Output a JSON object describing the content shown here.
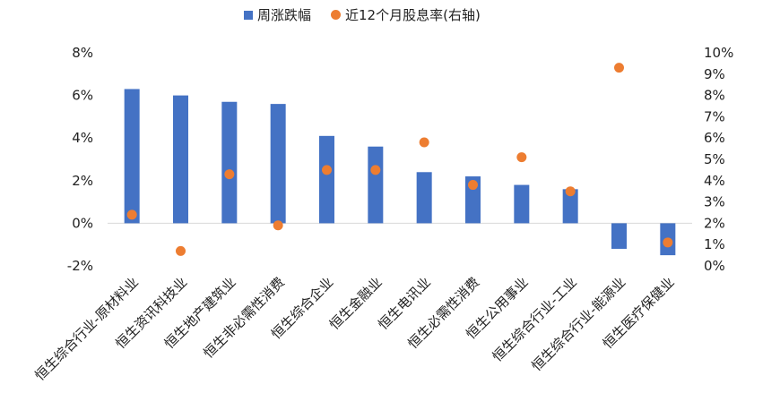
{
  "chart_data": {
    "type": "bar",
    "categories": [
      "恒生综合行业-原材料业",
      "恒生资讯科技业",
      "恒生地产建筑业",
      "恒生非必需性消费",
      "恒生综合企业",
      "恒生金融业",
      "恒生电讯业",
      "恒生必需性消费",
      "恒生公用事业",
      "恒生综合行业-工业",
      "恒生综合行业-能源业",
      "恒生医疗保健业"
    ],
    "series": [
      {
        "name": "周涨跌幅",
        "type": "bar",
        "axis": "left",
        "color": "#4472C4",
        "values": [
          6.3,
          6.0,
          5.7,
          5.6,
          4.1,
          3.6,
          2.4,
          2.2,
          1.8,
          1.6,
          -1.2,
          -1.5
        ]
      },
      {
        "name": "近12个月股息率(右轴)",
        "type": "scatter",
        "axis": "right",
        "color": "#ED7D31",
        "values": [
          2.4,
          0.7,
          4.3,
          1.9,
          4.5,
          4.5,
          5.8,
          3.8,
          5.1,
          3.5,
          9.3,
          1.1
        ]
      }
    ],
    "left_axis": {
      "min": -2,
      "max": 8,
      "step": 2,
      "ticks": [
        "-2%",
        "0%",
        "2%",
        "4%",
        "6%",
        "8%"
      ]
    },
    "right_axis": {
      "min": 0,
      "max": 10,
      "step": 1,
      "ticks": [
        "0%",
        "1%",
        "2%",
        "3%",
        "4%",
        "5%",
        "6%",
        "7%",
        "8%",
        "9%",
        "10%"
      ]
    },
    "title": "",
    "xlabel": "",
    "ylabel": "",
    "grid": false,
    "legend_position": "top-center"
  }
}
